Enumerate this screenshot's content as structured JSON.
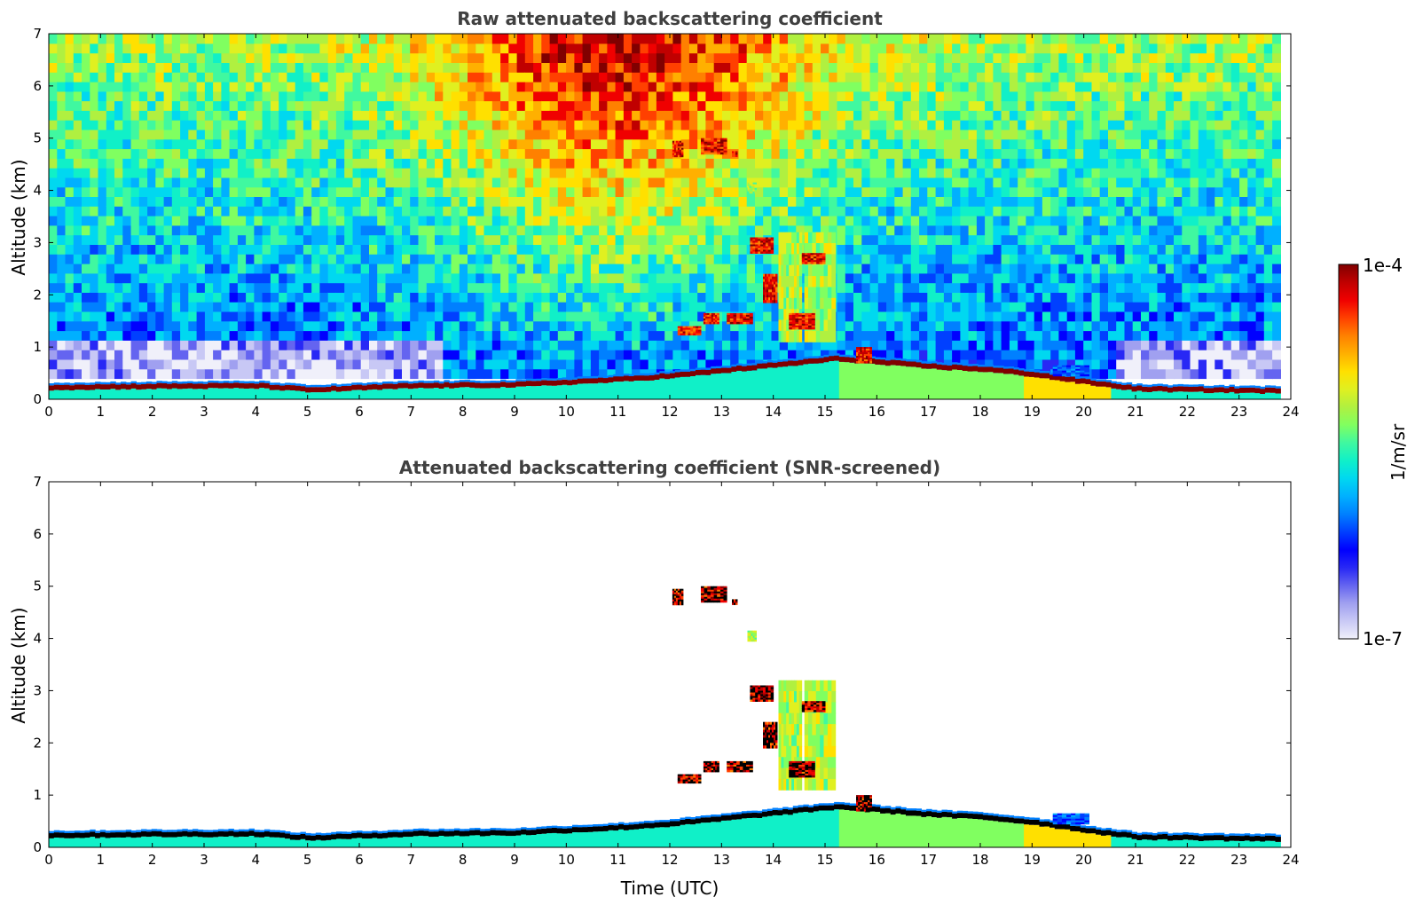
{
  "chart_data": [
    {
      "type": "heatmap",
      "title": "Raw attenuated backscattering coefficient",
      "xlabel": "",
      "ylabel": "Altitude (km)",
      "xlim": [
        0,
        24
      ],
      "ylim": [
        0,
        7
      ],
      "x_ticks": [
        "0",
        "1",
        "2",
        "3",
        "4",
        "5",
        "6",
        "7",
        "8",
        "9",
        "10",
        "11",
        "12",
        "13",
        "14",
        "15",
        "16",
        "17",
        "18",
        "19",
        "20",
        "21",
        "22",
        "23",
        "24"
      ],
      "y_ticks": [
        "0",
        "1",
        "2",
        "3",
        "4",
        "5",
        "6",
        "7"
      ],
      "grid": false,
      "data_end_time": 23.8,
      "boundary_layer_top_km": [
        [
          0,
          0.25
        ],
        [
          2,
          0.27
        ],
        [
          4,
          0.28
        ],
        [
          5,
          0.2
        ],
        [
          7,
          0.28
        ],
        [
          9,
          0.3
        ],
        [
          11,
          0.4
        ],
        [
          12.1,
          0.48
        ],
        [
          15.2,
          0.8
        ],
        [
          17,
          0.65
        ],
        [
          18,
          0.6
        ],
        [
          19,
          0.5
        ],
        [
          20,
          0.35
        ],
        [
          21,
          0.22
        ],
        [
          23.8,
          0.18
        ]
      ],
      "features": [
        {
          "t0": 12.05,
          "t1": 12.25,
          "z0": 4.65,
          "z1": 4.95,
          "level": "high"
        },
        {
          "t0": 12.6,
          "t1": 13.1,
          "z0": 4.7,
          "z1": 5.0,
          "level": "high"
        },
        {
          "t0": 13.2,
          "t1": 13.3,
          "z0": 4.65,
          "z1": 4.75,
          "level": "high"
        },
        {
          "t0": 13.5,
          "t1": 13.65,
          "z0": 3.95,
          "z1": 4.15,
          "level": "mid"
        },
        {
          "t0": 13.55,
          "t1": 13.95,
          "z0": 2.8,
          "z1": 3.1,
          "level": "high"
        },
        {
          "t0": 14.1,
          "t1": 14.5,
          "z0": 1.1,
          "z1": 3.2,
          "level": "mid"
        },
        {
          "t0": 14.6,
          "t1": 15.2,
          "z0": 1.1,
          "z1": 3.2,
          "level": "mid"
        },
        {
          "t0": 14.55,
          "t1": 15.0,
          "z0": 2.6,
          "z1": 2.8,
          "level": "high"
        },
        {
          "t0": 13.8,
          "t1": 14.05,
          "z0": 1.9,
          "z1": 2.4,
          "level": "high"
        },
        {
          "t0": 14.3,
          "t1": 14.8,
          "z0": 1.35,
          "z1": 1.65,
          "level": "high"
        },
        {
          "t0": 12.15,
          "t1": 12.55,
          "z0": 1.25,
          "z1": 1.4,
          "level": "high"
        },
        {
          "t0": 12.65,
          "t1": 12.95,
          "z0": 1.45,
          "z1": 1.65,
          "level": "high"
        },
        {
          "t0": 13.1,
          "t1": 13.6,
          "z0": 1.45,
          "z1": 1.65,
          "level": "high"
        },
        {
          "t0": 15.6,
          "t1": 15.9,
          "z0": 0.7,
          "z1": 1.0,
          "level": "high"
        },
        {
          "t0": 19.4,
          "t1": 20.1,
          "z0": 0.45,
          "z1": 0.65,
          "level": "low"
        }
      ]
    },
    {
      "type": "heatmap",
      "title": "Attenuated backscattering coefficient (SNR-screened)",
      "xlabel": "Time (UTC)",
      "ylabel": "Altitude (km)",
      "xlim": [
        0,
        24
      ],
      "ylim": [
        0,
        7
      ],
      "x_ticks": [
        "0",
        "1",
        "2",
        "3",
        "4",
        "5",
        "6",
        "7",
        "8",
        "9",
        "10",
        "11",
        "12",
        "13",
        "14",
        "15",
        "16",
        "17",
        "18",
        "19",
        "20",
        "21",
        "22",
        "23",
        "24"
      ],
      "y_ticks": [
        "0",
        "1",
        "2",
        "3",
        "4",
        "5",
        "6",
        "7"
      ],
      "grid": false
    }
  ],
  "colorbar": {
    "label": "1/m/sr",
    "max_label": "1e-4",
    "min_label": "1e-7",
    "colors": [
      "#f0f0fa",
      "#c8c8f5",
      "#a0a0f0",
      "#6464f0",
      "#2828f5",
      "#0000ff",
      "#0040ff",
      "#0080ff",
      "#00b0ff",
      "#00d8f0",
      "#10f0c8",
      "#40f8a0",
      "#80ff60",
      "#b0f040",
      "#e0f020",
      "#ffe000",
      "#ffb000",
      "#ff8000",
      "#ff4000",
      "#f00000",
      "#c00000",
      "#800000"
    ]
  }
}
